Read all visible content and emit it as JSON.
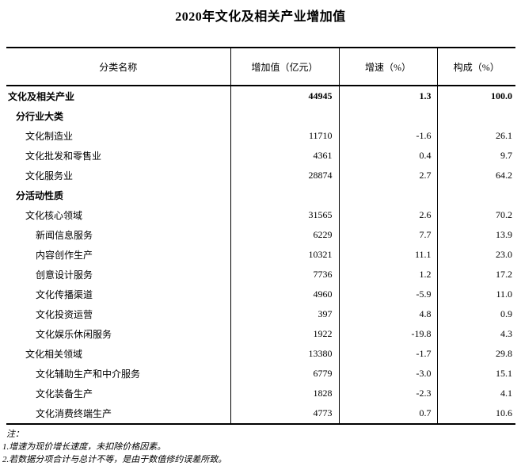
{
  "title": "2020年文化及相关产业增加值",
  "table": {
    "headers": [
      "分类名称",
      "增加值（亿元）",
      "增速（%）",
      "构成（%）"
    ],
    "rows": [
      {
        "label": "文化及相关产业",
        "value": "44945",
        "growth": "1.3",
        "share": "100.0"
      },
      {
        "label": "分行业大类",
        "value": "",
        "growth": "",
        "share": ""
      },
      {
        "label": "文化制造业",
        "value": "11710",
        "growth": "-1.6",
        "share": "26.1"
      },
      {
        "label": "文化批发和零售业",
        "value": "4361",
        "growth": "0.4",
        "share": "9.7"
      },
      {
        "label": "文化服务业",
        "value": "28874",
        "growth": "2.7",
        "share": "64.2"
      },
      {
        "label": "分活动性质",
        "value": "",
        "growth": "",
        "share": ""
      },
      {
        "label": "文化核心领域",
        "value": "31565",
        "growth": "2.6",
        "share": "70.2"
      },
      {
        "label": "新闻信息服务",
        "value": "6229",
        "growth": "7.7",
        "share": "13.9"
      },
      {
        "label": "内容创作生产",
        "value": "10321",
        "growth": "11.1",
        "share": "23.0"
      },
      {
        "label": "创意设计服务",
        "value": "7736",
        "growth": "1.2",
        "share": "17.2"
      },
      {
        "label": "文化传播渠道",
        "value": "4960",
        "growth": "-5.9",
        "share": "11.0"
      },
      {
        "label": "文化投资运营",
        "value": "397",
        "growth": "4.8",
        "share": "0.9"
      },
      {
        "label": "文化娱乐休闲服务",
        "value": "1922",
        "growth": "-19.8",
        "share": "4.3"
      },
      {
        "label": "文化相关领域",
        "value": "13380",
        "growth": "-1.7",
        "share": "29.8"
      },
      {
        "label": "文化辅助生产和中介服务",
        "value": "6779",
        "growth": "-3.0",
        "share": "15.1"
      },
      {
        "label": "文化装备生产",
        "value": "1828",
        "growth": "-2.3",
        "share": "4.1"
      },
      {
        "label": "文化消费终端生产",
        "value": "4773",
        "growth": "0.7",
        "share": "10.6"
      }
    ]
  },
  "notes": {
    "label": "注：",
    "items": [
      "1.增速为现价增长速度，未扣除价格因素。",
      "2.若数据分项合计与总计不等，是由于数值修约误差所致。"
    ]
  }
}
